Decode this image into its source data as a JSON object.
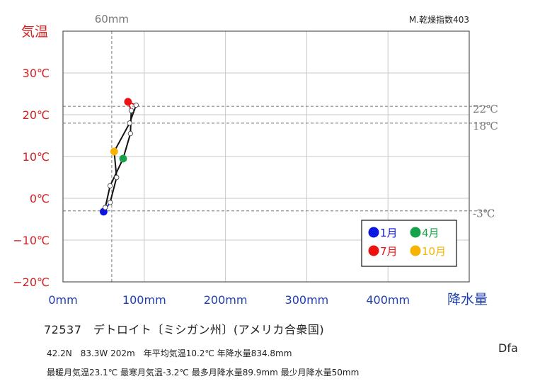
{
  "chart_data": {
    "type": "line",
    "ylabel": "気温",
    "xlabel": "降水量",
    "xlim": [
      0,
      500
    ],
    "ylim": [
      -20,
      40
    ],
    "x_ticks": [
      {
        "value": 0,
        "label": "0mm"
      },
      {
        "value": 100,
        "label": "100mm"
      },
      {
        "value": 200,
        "label": "200mm"
      },
      {
        "value": 300,
        "label": "300mm"
      },
      {
        "value": 400,
        "label": "400mm"
      }
    ],
    "y_ticks": [
      {
        "value": -20,
        "label": "−20℃"
      },
      {
        "value": -10,
        "label": "−10℃"
      },
      {
        "value": 0,
        "label": "0℃"
      },
      {
        "value": 10,
        "label": "10℃"
      },
      {
        "value": 20,
        "label": "20℃"
      },
      {
        "value": 30,
        "label": "30℃"
      }
    ],
    "grid": true,
    "ref_vertical": {
      "value": 60,
      "label": "60mm"
    },
    "ref_horizontal": [
      {
        "value": 22,
        "label": "22℃"
      },
      {
        "value": 18,
        "label": "18℃"
      },
      {
        "value": -3,
        "label": "-3℃"
      }
    ],
    "index_label": "M.乾燥指数403",
    "series": [
      {
        "months": [
          1,
          2,
          3,
          4,
          5,
          6,
          7,
          8,
          9,
          10,
          11,
          12
        ],
        "precip": [
          50,
          52,
          58,
          74,
          83,
          84,
          80,
          90,
          82,
          63,
          66,
          58
        ],
        "temp": [
          -3.2,
          -2.2,
          3.0,
          9.5,
          15.5,
          21.0,
          23.1,
          22.3,
          18.0,
          11.2,
          5.0,
          -1.0
        ]
      }
    ],
    "legend": {
      "placement": "bottom-right",
      "items": [
        {
          "label": "1月",
          "color": "#0b16e0",
          "month": 1
        },
        {
          "label": "4月",
          "color": "#17a24a",
          "month": 4
        },
        {
          "label": "7月",
          "color": "#ee1111",
          "month": 7
        },
        {
          "label": "10月",
          "color": "#f5b400",
          "month": 10
        }
      ]
    }
  },
  "info": {
    "station": "72537　デトロイト〔ミシガン州〕(アメリカ合衆国)",
    "line1": "42.2N　83.3W 202m　年平均気温10.2℃ 年降水量834.8mm",
    "line2": "最暖月気温23.1℃ 最寒月気温-3.2℃ 最多月降水量89.9mm 最少月降水量50mm",
    "climate": "Dfa"
  }
}
